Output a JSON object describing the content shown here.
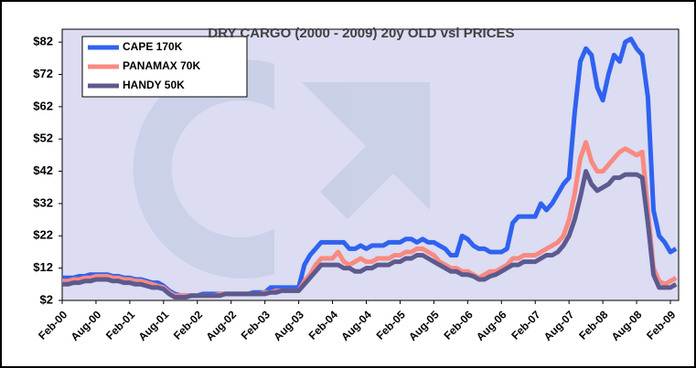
{
  "chart_data": {
    "type": "line",
    "title": "DRY CARGO (2000 - 2009) 20y OLD vsl PRICES",
    "x": [
      "Feb-00",
      null,
      null,
      null,
      null,
      null,
      "Aug-00",
      null,
      null,
      null,
      null,
      null,
      "Feb-01",
      null,
      null,
      null,
      null,
      null,
      "Aug-01",
      null,
      null,
      null,
      null,
      null,
      "Feb-02",
      null,
      null,
      null,
      null,
      null,
      "Aug-02",
      null,
      null,
      null,
      null,
      null,
      "Feb-03",
      null,
      null,
      null,
      null,
      null,
      "Aug-03",
      null,
      null,
      null,
      null,
      null,
      "Feb-04",
      null,
      null,
      null,
      null,
      null,
      "Aug-04",
      null,
      null,
      null,
      null,
      null,
      "Feb-05",
      null,
      null,
      null,
      null,
      null,
      "Aug-05",
      null,
      null,
      null,
      null,
      null,
      "Feb-06",
      null,
      null,
      null,
      null,
      null,
      "Aug-06",
      null,
      null,
      null,
      null,
      null,
      "Feb-07",
      null,
      null,
      null,
      null,
      null,
      "Aug-07",
      null,
      null,
      null,
      null,
      null,
      "Feb-08",
      null,
      null,
      null,
      null,
      null,
      "Aug-08",
      null,
      null,
      null,
      null,
      null,
      "Feb-09",
      null
    ],
    "series": [
      {
        "name": "CAPE 170K",
        "color": "#2f62f0",
        "values": [
          9,
          9,
          9,
          9.5,
          9.5,
          10,
          10,
          10,
          10,
          9.5,
          9.5,
          9,
          9,
          8.5,
          8.5,
          8,
          7.5,
          7.5,
          6.5,
          5,
          4,
          3.5,
          3.5,
          3.5,
          3.5,
          4,
          4,
          4,
          4,
          4,
          4,
          4,
          4,
          4,
          4.5,
          4.5,
          4.5,
          6,
          6,
          6,
          6,
          6,
          6,
          13,
          16,
          18,
          20,
          20,
          20,
          20,
          20,
          18,
          18,
          19,
          18,
          19,
          19,
          19,
          20,
          20,
          20,
          21,
          21,
          20,
          21,
          20,
          20,
          19,
          18,
          16,
          16,
          22,
          21,
          19,
          18,
          18,
          17,
          17,
          17,
          18,
          26,
          28,
          28,
          28,
          28,
          32,
          30,
          32,
          35,
          38,
          40,
          60,
          76,
          80,
          78,
          68,
          64,
          72,
          78,
          76,
          82,
          83,
          80,
          78,
          65,
          30,
          22,
          20,
          17,
          18
        ]
      },
      {
        "name": "PANAMAX 70K",
        "color": "#f88a80",
        "values": [
          8,
          8,
          8.5,
          8.5,
          9,
          9,
          9.5,
          9.5,
          9.5,
          9,
          9,
          8.5,
          8.5,
          8,
          8,
          7.5,
          7,
          6.5,
          6,
          4.5,
          3.5,
          3.5,
          3.5,
          3.5,
          3.5,
          3.5,
          3.5,
          3.5,
          4,
          4,
          4,
          4,
          4,
          4,
          4,
          4,
          4.5,
          4.5,
          5,
          5,
          5,
          5,
          5,
          8,
          10,
          13,
          15,
          15,
          15,
          17,
          14,
          13,
          14,
          15,
          14,
          14,
          15,
          15,
          15,
          16,
          16,
          17,
          17,
          18,
          18,
          17,
          16,
          14,
          13,
          12,
          12,
          11,
          11,
          10,
          9,
          10,
          11,
          11,
          12,
          13,
          15,
          15,
          16,
          16,
          16,
          17,
          18,
          19,
          20,
          22,
          27,
          35,
          46,
          51,
          45,
          42,
          42,
          44,
          46,
          48,
          49,
          48,
          47,
          48,
          30,
          12,
          8,
          7,
          8,
          9
        ]
      },
      {
        "name": "HANDY 50K",
        "color": "#5c5a8e",
        "values": [
          7,
          7,
          7.5,
          7.5,
          8,
          8,
          8.5,
          8.5,
          8.5,
          8,
          8,
          7.5,
          7.5,
          7,
          7,
          6.5,
          6,
          6,
          5.5,
          4,
          3,
          3,
          3,
          3.5,
          3.5,
          3.5,
          3.5,
          3.5,
          3.5,
          4,
          4,
          4,
          4,
          4,
          4,
          4,
          4,
          4.5,
          4.5,
          5,
          5,
          5,
          5,
          7,
          9,
          11,
          13,
          13,
          13,
          13,
          12,
          12,
          11,
          11,
          12,
          12,
          13,
          13,
          13,
          14,
          14,
          15,
          15,
          16,
          16,
          15,
          14,
          13,
          12,
          11,
          11,
          10,
          10,
          9.5,
          8.5,
          8.5,
          9.5,
          10,
          11,
          12,
          13,
          13,
          14,
          14,
          14,
          15,
          16,
          16,
          17,
          19,
          22,
          27,
          34,
          42,
          38,
          36,
          37,
          38,
          40,
          40,
          41,
          41,
          41,
          40,
          26,
          10,
          6,
          6,
          6,
          7
        ]
      }
    ],
    "ylim": [
      2,
      86
    ],
    "yticks": [
      {
        "value": 2,
        "label": "$2"
      },
      {
        "value": 12,
        "label": "$12"
      },
      {
        "value": 22,
        "label": "$22"
      },
      {
        "value": 32,
        "label": "$32"
      },
      {
        "value": 42,
        "label": "$42"
      },
      {
        "value": 52,
        "label": "$52"
      },
      {
        "value": 62,
        "label": "$62"
      },
      {
        "value": 72,
        "label": "$72"
      },
      {
        "value": 82,
        "label": "$82"
      }
    ],
    "grid": false,
    "legend": "upper left"
  }
}
